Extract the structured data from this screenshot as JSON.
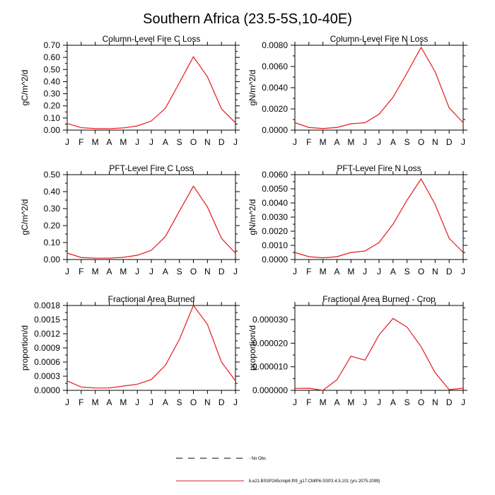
{
  "figure": {
    "title": "Southern Africa (23.5-5S,10-40E)"
  },
  "legend": {
    "obs_label": "- No Obs",
    "model_label": "b.e21.BSSP245cmip6.f09_g17.CMIP6-SSP2-4.5.101 (yrs 2075-2099)",
    "model_color": "#e41a1c",
    "obs_color": "#000000"
  },
  "chart_data": [
    {
      "type": "line",
      "title": "Column-Level Fire C Loss",
      "ylabel": "gC/m^2/d",
      "xlabel": "",
      "categories": [
        "J",
        "F",
        "M",
        "A",
        "M",
        "J",
        "J",
        "A",
        "S",
        "O",
        "N",
        "D",
        "J"
      ],
      "ylim": [
        0,
        0.7
      ],
      "yticks": [
        "0.00",
        "0.10",
        "0.20",
        "0.30",
        "0.40",
        "0.50",
        "0.60",
        "0.70"
      ],
      "series": [
        {
          "name": "b.e21.BSSP245cmip6.f09_g17.CMIP6-SSP2-4.5.101 (yrs 2075-2099)",
          "color": "#e41a1c",
          "values": [
            0.055,
            0.02,
            0.013,
            0.012,
            0.018,
            0.035,
            0.075,
            0.18,
            0.39,
            0.605,
            0.44,
            0.175,
            0.06
          ]
        }
      ]
    },
    {
      "type": "line",
      "title": "Column-Level Fire N Loss",
      "ylabel": "gN/m^2/d",
      "xlabel": "",
      "categories": [
        "J",
        "F",
        "M",
        "A",
        "M",
        "J",
        "J",
        "A",
        "S",
        "O",
        "N",
        "D",
        "J"
      ],
      "ylim": [
        0,
        0.008
      ],
      "yticks": [
        "0.0000",
        "0.0020",
        "0.0040",
        "0.0060",
        "0.0080"
      ],
      "series": [
        {
          "name": "b.e21.BSSP245cmip6.f09_g17.CMIP6-SSP2-4.5.101 (yrs 2075-2099)",
          "color": "#e41a1c",
          "values": [
            0.0007,
            0.00025,
            0.00015,
            0.00025,
            0.0006,
            0.0007,
            0.0015,
            0.0031,
            0.0054,
            0.0078,
            0.0055,
            0.0021,
            0.0007
          ]
        }
      ]
    },
    {
      "type": "line",
      "title": "PFT-Level Fire C Loss",
      "ylabel": "gC/m^2/d",
      "xlabel": "",
      "categories": [
        "J",
        "F",
        "M",
        "A",
        "M",
        "J",
        "J",
        "A",
        "S",
        "O",
        "N",
        "D",
        "J"
      ],
      "ylim": [
        0,
        0.5
      ],
      "yticks": [
        "0.00",
        "0.10",
        "0.20",
        "0.30",
        "0.40",
        "0.50"
      ],
      "series": [
        {
          "name": "b.e21.BSSP245cmip6.f09_g17.CMIP6-SSP2-4.5.101 (yrs 2075-2099)",
          "color": "#e41a1c",
          "values": [
            0.038,
            0.012,
            0.008,
            0.008,
            0.013,
            0.025,
            0.054,
            0.135,
            0.285,
            0.432,
            0.31,
            0.125,
            0.037
          ]
        }
      ]
    },
    {
      "type": "line",
      "title": "PFT-Level Fire N Loss",
      "ylabel": "gN/m^2/d",
      "xlabel": "",
      "categories": [
        "J",
        "F",
        "M",
        "A",
        "M",
        "J",
        "J",
        "A",
        "S",
        "O",
        "N",
        "D",
        "J"
      ],
      "ylim": [
        0,
        0.006
      ],
      "yticks": [
        "0.0000",
        "0.0010",
        "0.0020",
        "0.0030",
        "0.0040",
        "0.0050",
        "0.0060"
      ],
      "series": [
        {
          "name": "b.e21.BSSP245cmip6.f09_g17.CMIP6-SSP2-4.5.101 (yrs 2075-2099)",
          "color": "#e41a1c",
          "values": [
            0.0005,
            0.0002,
            0.00012,
            0.0002,
            0.0005,
            0.0006,
            0.0012,
            0.0025,
            0.0042,
            0.0057,
            0.0039,
            0.0015,
            0.0005
          ]
        }
      ]
    },
    {
      "type": "line",
      "title": "Fractional Area Burned",
      "ylabel": "proportion/d",
      "xlabel": "",
      "categories": [
        "J",
        "F",
        "M",
        "A",
        "M",
        "J",
        "J",
        "A",
        "S",
        "O",
        "N",
        "D",
        "J"
      ],
      "ylim": [
        0,
        0.0018
      ],
      "yticks": [
        "0.0000",
        "0.0003",
        "0.0006",
        "0.0009",
        "0.0012",
        "0.0015",
        "0.0018"
      ],
      "series": [
        {
          "name": "b.e21.BSSP245cmip6.f09_g17.CMIP6-SSP2-4.5.101 (yrs 2075-2099)",
          "color": "#e41a1c",
          "values": [
            0.0002,
            7e-05,
            5e-05,
            5e-05,
            9e-05,
            0.00013,
            0.00023,
            0.00053,
            0.00108,
            0.0018,
            0.0014,
            0.0006,
            0.0002
          ]
        }
      ]
    },
    {
      "type": "line",
      "title": "Fractional Area Burned - Crop",
      "ylabel": "proportion/d",
      "xlabel": "",
      "categories": [
        "J",
        "F",
        "M",
        "A",
        "M",
        "J",
        "J",
        "A",
        "S",
        "O",
        "N",
        "D",
        "J"
      ],
      "ylim": [
        0,
        3.6e-05
      ],
      "yticks": [
        "0.000000",
        "0.000010",
        "0.000020",
        "0.000030"
      ],
      "series": [
        {
          "name": "b.e21.BSSP245cmip6.f09_g17.CMIP6-SSP2-4.5.101 (yrs 2075-2099)",
          "color": "#e41a1c",
          "values": [
            8e-07,
            9e-07,
            0.0,
            4.5e-06,
            1.45e-05,
            1.28e-05,
            2.35e-05,
            3.05e-05,
            2.68e-05,
            1.85e-05,
            7.5e-06,
            3e-07,
            9e-07
          ]
        }
      ]
    }
  ]
}
